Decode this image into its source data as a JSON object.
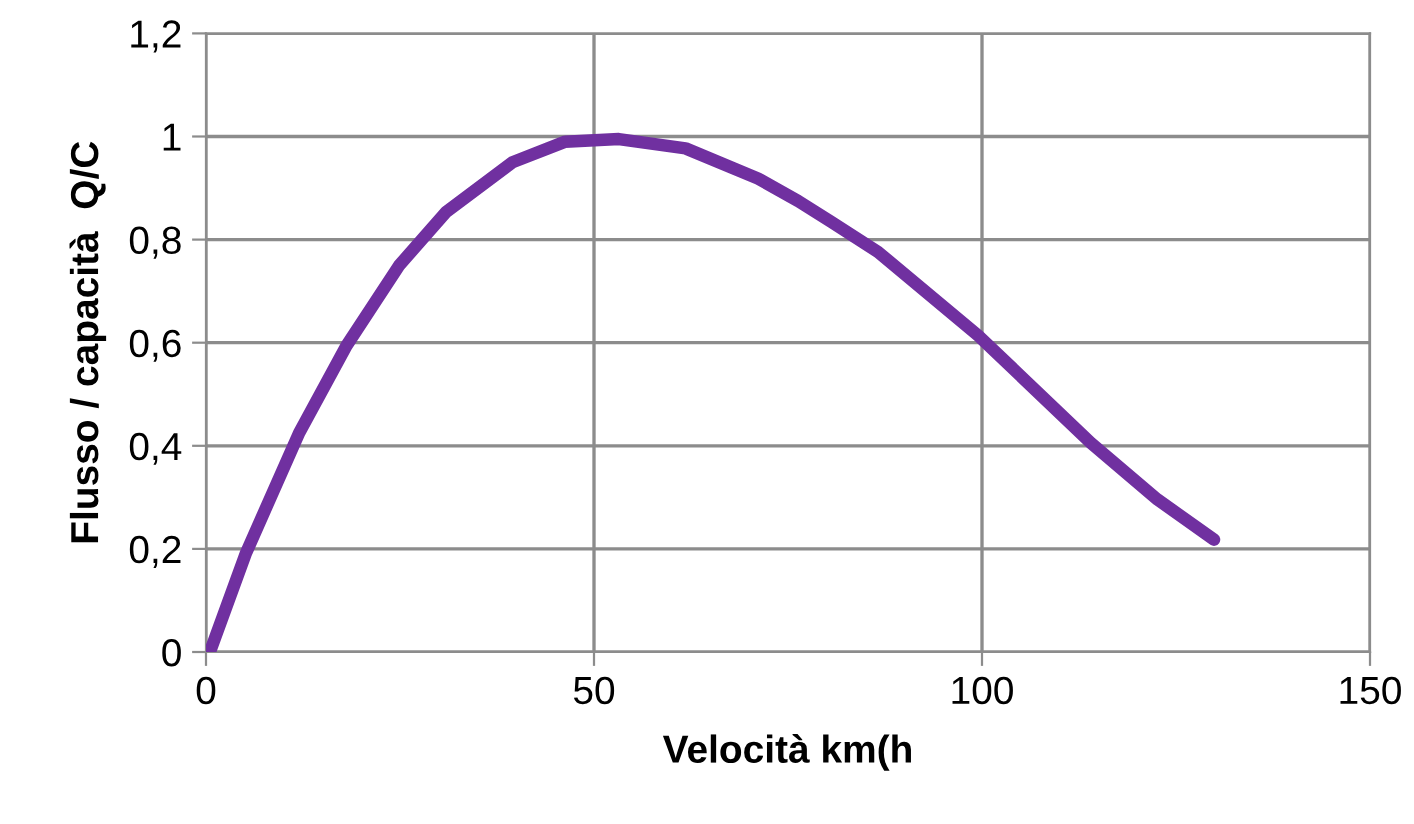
{
  "chart_data": {
    "type": "line",
    "xlabel": "Velocità km(h",
    "ylabel": "Flusso / capacità  Q/C",
    "series": [
      {
        "color": "#7030a0",
        "x": [
          0.5,
          5.1,
          12.0,
          18.1,
          24.9,
          30.9,
          39.5,
          46.3,
          53.2,
          61.8,
          71.2,
          76.3,
          80.6,
          86.6,
          99.5,
          114.0,
          122.6,
          129.9
        ],
        "values": [
          0.0,
          0.19,
          0.425,
          0.594,
          0.75,
          0.853,
          0.95,
          0.99,
          0.995,
          0.977,
          0.918,
          0.875,
          0.834,
          0.776,
          0.614,
          0.406,
          0.296,
          0.218
        ]
      }
    ],
    "xlim": [
      0,
      150
    ],
    "xticks": [
      0,
      50,
      100,
      150
    ],
    "ylim": [
      0,
      1.2
    ],
    "yticks": [
      {
        "value": 0,
        "label": "0"
      },
      {
        "value": 0.2,
        "label": "0,2"
      },
      {
        "value": 0.4,
        "label": "0,4"
      },
      {
        "value": 0.6,
        "label": "0,6"
      },
      {
        "value": 0.8,
        "label": "0,8"
      },
      {
        "value": 1,
        "label": "1"
      },
      {
        "value": 1.2,
        "label": "1,2"
      }
    ],
    "grid": true,
    "legend": false,
    "marker": "none",
    "line_style": "solid"
  }
}
